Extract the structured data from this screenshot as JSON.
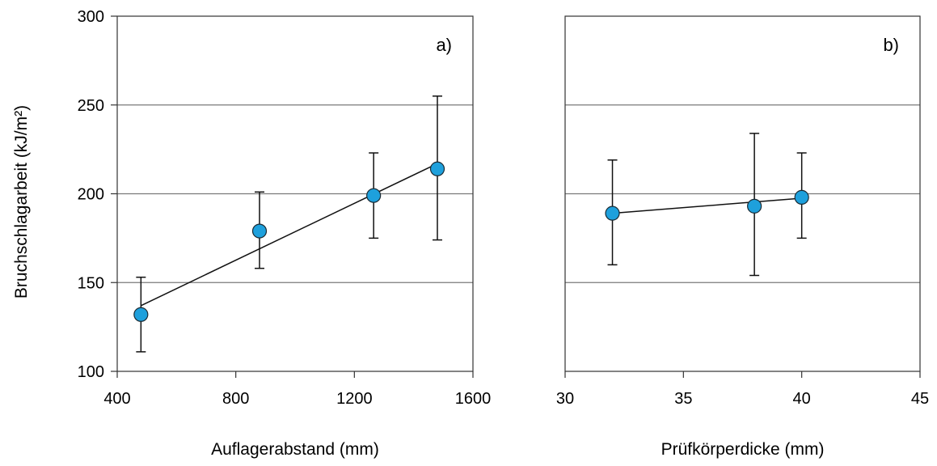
{
  "chart_data": [
    {
      "type": "scatter",
      "panel_label": "a)",
      "xlabel": "Auflagerabstand (mm)",
      "ylabel": "Bruchschlagarbeit (kJ/m²)",
      "xlim": [
        400,
        1600
      ],
      "ylim": [
        100,
        300
      ],
      "xticks": [
        "400",
        "800",
        "1200",
        "1600"
      ],
      "yticks": [
        "100",
        "150",
        "200",
        "250",
        "300"
      ],
      "grid": true,
      "trendline": {
        "type": "linear",
        "x": [
          480,
          1480
        ],
        "y": [
          137,
          217
        ]
      },
      "points": [
        {
          "x": 480,
          "y": 132,
          "err_low": 111,
          "err_high": 153
        },
        {
          "x": 880,
          "y": 179,
          "err_low": 158,
          "err_high": 201
        },
        {
          "x": 1265,
          "y": 199,
          "err_low": 175,
          "err_high": 223
        },
        {
          "x": 1480,
          "y": 214,
          "err_low": 174,
          "err_high": 255
        }
      ],
      "marker_color": "#1ea0dc"
    },
    {
      "type": "scatter",
      "panel_label": "b)",
      "xlabel": "Prüfkörperdicke (mm)",
      "ylabel": "",
      "xlim": [
        30,
        45
      ],
      "ylim": [
        100,
        300
      ],
      "xticks": [
        "30",
        "35",
        "40",
        "45"
      ],
      "yticks": [],
      "grid": true,
      "trendline": {
        "type": "linear",
        "x": [
          32,
          40
        ],
        "y": [
          189,
          197.5
        ]
      },
      "points": [
        {
          "x": 32,
          "y": 189,
          "err_low": 160,
          "err_high": 219
        },
        {
          "x": 38,
          "y": 193,
          "err_low": 154,
          "err_high": 234
        },
        {
          "x": 40,
          "y": 198,
          "err_low": 175,
          "err_high": 223
        }
      ],
      "marker_color": "#1ea0dc"
    }
  ]
}
